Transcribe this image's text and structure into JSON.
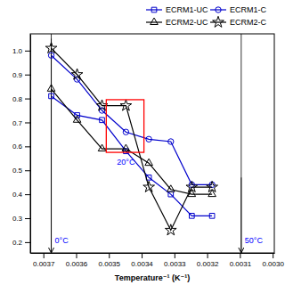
{
  "chart_data": {
    "type": "line",
    "xlabel": "Temperature⁻¹ (K⁻¹)",
    "xlim": [
      0.00374,
      0.002995
    ],
    "ylim": [
      0.155,
      1.07
    ],
    "xticks": [
      0.0037,
      0.0036,
      0.0035,
      0.0034,
      0.0033,
      0.0032,
      0.0031,
      {
        "value": 0.003,
        "label": "0.0030"
      }
    ],
    "yticks": [
      0.2,
      0.3,
      0.4,
      0.5,
      0.6,
      0.7,
      0.8,
      0.9,
      {
        "value": 1.0,
        "label": "1.0"
      }
    ],
    "grid": false,
    "legend": "upper right",
    "series": [
      {
        "name": "ECRM1-UC",
        "color": "#0000cc",
        "marker": "square",
        "line_style": "solid",
        "x": [
          0.003676,
          0.003597,
          0.003521,
          0.003448,
          0.003378,
          0.003311,
          0.003247,
          0.003185
        ],
        "values": [
          0.81,
          0.73,
          0.71,
          0.58,
          0.47,
          0.4,
          0.31,
          0.31
        ]
      },
      {
        "name": "ECRM1-C",
        "color": "#0000cc",
        "marker": "circle",
        "line_style": "solid",
        "x": [
          0.003676,
          0.003597,
          0.003521,
          0.003448,
          0.003378,
          0.003311,
          0.003247,
          0.003185
        ],
        "values": [
          0.98,
          0.88,
          0.75,
          0.66,
          0.63,
          0.62,
          0.44,
          0.44
        ]
      },
      {
        "name": "ECRM2-UC",
        "color": "black",
        "marker": "triangle",
        "line_style": "solid",
        "x": [
          0.003676,
          0.003597,
          0.003521,
          0.003448,
          0.003378,
          0.003311,
          0.003247,
          0.003185
        ],
        "values": [
          0.84,
          0.71,
          0.59,
          0.59,
          0.53,
          0.42,
          0.4,
          0.4
        ]
      },
      {
        "name": "ECRM2-C",
        "color": "black",
        "marker": "star",
        "line_style": "solid",
        "x": [
          0.003676,
          0.003597,
          0.003521,
          0.003448,
          0.003378,
          0.003311,
          0.003247,
          0.003185
        ],
        "values": [
          1.01,
          0.9,
          0.77,
          0.77,
          0.43,
          0.25,
          0.43,
          0.43
        ]
      }
    ],
    "vlines": [
      {
        "x": 0.003676,
        "arrow_from": 1.05
      },
      {
        "x": 0.003096,
        "arrow_from": 0.47
      }
    ],
    "highlight": {
      "x": [
        0.003393,
        0.003508
      ],
      "y": [
        0.575,
        0.795
      ],
      "color": "red"
    },
    "annotations": [
      {
        "text": "0°C",
        "x": 0.003676,
        "y": 0.19,
        "color": "blue"
      },
      {
        "text": "50°C",
        "x": 0.003096,
        "y": 0.19,
        "color": "blue"
      },
      {
        "text": "20°C",
        "x": 0.003448,
        "y": 0.555,
        "color": "blue"
      }
    ]
  }
}
